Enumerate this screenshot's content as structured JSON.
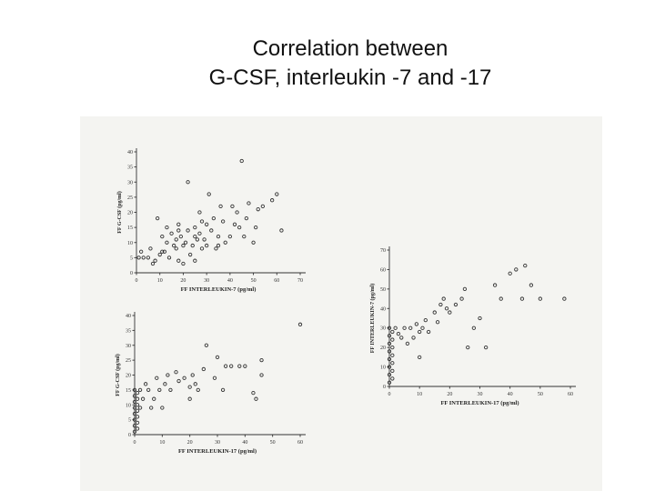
{
  "page": {
    "title_line1": "Correlation between",
    "title_line2": "G-CSF, interleukin -7 and -17"
  },
  "chart_data": [
    {
      "type": "scatter",
      "xlabel": "FF INTERLEUKIN-7 (pg/ml)",
      "ylabel": "FF G-CSF (pg/ml)",
      "xlim": [
        0,
        70
      ],
      "ylim": [
        0,
        40
      ],
      "xticks": [
        "0",
        "10",
        "20",
        "30",
        "40",
        "50",
        "60",
        "70"
      ],
      "yticks": [
        "0",
        "5",
        "10",
        "15",
        "20",
        "25",
        "30",
        "35",
        "40"
      ],
      "points": [
        [
          1,
          5
        ],
        [
          2,
          7
        ],
        [
          3,
          5
        ],
        [
          5,
          5
        ],
        [
          6,
          8
        ],
        [
          7,
          3
        ],
        [
          8,
          4
        ],
        [
          9,
          18
        ],
        [
          10,
          6
        ],
        [
          11,
          7
        ],
        [
          11,
          12
        ],
        [
          12,
          7
        ],
        [
          13,
          15
        ],
        [
          13,
          10
        ],
        [
          14,
          5
        ],
        [
          15,
          13
        ],
        [
          16,
          9
        ],
        [
          17,
          8
        ],
        [
          17,
          11
        ],
        [
          18,
          16
        ],
        [
          18,
          14
        ],
        [
          19,
          12
        ],
        [
          20,
          3
        ],
        [
          20,
          9
        ],
        [
          21,
          10
        ],
        [
          22,
          14
        ],
        [
          22,
          30
        ],
        [
          23,
          6
        ],
        [
          24,
          9
        ],
        [
          25,
          12
        ],
        [
          25,
          15
        ],
        [
          26,
          11
        ],
        [
          27,
          13
        ],
        [
          27,
          20
        ],
        [
          28,
          8
        ],
        [
          28,
          17
        ],
        [
          29,
          11
        ],
        [
          30,
          9
        ],
        [
          30,
          16
        ],
        [
          31,
          26
        ],
        [
          32,
          14
        ],
        [
          33,
          18
        ],
        [
          34,
          8
        ],
        [
          35,
          12
        ],
        [
          36,
          22
        ],
        [
          37,
          17
        ],
        [
          38,
          10
        ],
        [
          40,
          12
        ],
        [
          41,
          22
        ],
        [
          42,
          16
        ],
        [
          43,
          20
        ],
        [
          44,
          15
        ],
        [
          45,
          37
        ],
        [
          46,
          12
        ],
        [
          47,
          18
        ],
        [
          48,
          23
        ],
        [
          50,
          10
        ],
        [
          51,
          15
        ],
        [
          52,
          21
        ],
        [
          54,
          22
        ],
        [
          58,
          24
        ],
        [
          60,
          26
        ],
        [
          62,
          14
        ],
        [
          18,
          4
        ],
        [
          25,
          4
        ],
        [
          35,
          9
        ]
      ]
    },
    {
      "type": "scatter",
      "xlabel": "FF INTERLEUKIN-17 (pg/ml)",
      "ylabel": "FF G-CSF (pg/ml)",
      "xlim": [
        0,
        60
      ],
      "ylim": [
        0,
        40
      ],
      "xticks": [
        "0",
        "10",
        "20",
        "30",
        "40",
        "50",
        "60"
      ],
      "yticks": [
        "0",
        "5",
        "10",
        "15",
        "20",
        "25",
        "30",
        "35",
        "40"
      ],
      "points": [
        [
          0,
          1
        ],
        [
          0,
          3
        ],
        [
          0,
          5
        ],
        [
          0,
          7
        ],
        [
          0,
          9
        ],
        [
          0,
          11
        ],
        [
          0,
          13
        ],
        [
          0,
          15
        ],
        [
          1,
          2
        ],
        [
          1,
          4
        ],
        [
          1,
          6
        ],
        [
          1,
          8
        ],
        [
          1,
          10
        ],
        [
          1,
          12
        ],
        [
          1,
          14
        ],
        [
          2,
          9
        ],
        [
          2,
          15
        ],
        [
          3,
          12
        ],
        [
          4,
          17
        ],
        [
          5,
          15
        ],
        [
          6,
          9
        ],
        [
          7,
          12
        ],
        [
          8,
          19
        ],
        [
          9,
          15
        ],
        [
          10,
          9
        ],
        [
          11,
          17
        ],
        [
          12,
          20
        ],
        [
          13,
          15
        ],
        [
          15,
          21
        ],
        [
          16,
          18
        ],
        [
          18,
          19
        ],
        [
          20,
          16
        ],
        [
          20,
          12
        ],
        [
          21,
          20
        ],
        [
          22,
          17
        ],
        [
          23,
          15
        ],
        [
          25,
          22
        ],
        [
          26,
          30
        ],
        [
          29,
          19
        ],
        [
          30,
          26
        ],
        [
          32,
          15
        ],
        [
          33,
          23
        ],
        [
          35,
          23
        ],
        [
          38,
          23
        ],
        [
          40,
          23
        ],
        [
          43,
          14
        ],
        [
          44,
          12
        ],
        [
          46,
          25
        ],
        [
          46,
          20
        ],
        [
          60,
          37
        ]
      ]
    },
    {
      "type": "scatter",
      "xlabel": "FF INTERLEUKIN-17 (pg/ml)",
      "ylabel": "FF INTERLEUKIN-7 (pg/ml)",
      "xlim": [
        0,
        60
      ],
      "ylim": [
        0,
        70
      ],
      "xticks": [
        "0",
        "10",
        "20",
        "30",
        "40",
        "50",
        "60"
      ],
      "yticks": [
        "0",
        "10",
        "20",
        "30",
        "40",
        "50",
        "60",
        "70"
      ],
      "points": [
        [
          0,
          2
        ],
        [
          0,
          6
        ],
        [
          0,
          10
        ],
        [
          0,
          14
        ],
        [
          0,
          18
        ],
        [
          0,
          22
        ],
        [
          0,
          26
        ],
        [
          0,
          30
        ],
        [
          1,
          4
        ],
        [
          1,
          8
        ],
        [
          1,
          12
        ],
        [
          1,
          16
        ],
        [
          1,
          20
        ],
        [
          1,
          24
        ],
        [
          1,
          28
        ],
        [
          2,
          30
        ],
        [
          3,
          27
        ],
        [
          4,
          25
        ],
        [
          5,
          30
        ],
        [
          6,
          22
        ],
        [
          7,
          30
        ],
        [
          8,
          25
        ],
        [
          9,
          32
        ],
        [
          10,
          15
        ],
        [
          10,
          28
        ],
        [
          11,
          30
        ],
        [
          12,
          34
        ],
        [
          13,
          28
        ],
        [
          15,
          38
        ],
        [
          16,
          33
        ],
        [
          17,
          42
        ],
        [
          18,
          45
        ],
        [
          19,
          40
        ],
        [
          20,
          38
        ],
        [
          22,
          42
        ],
        [
          24,
          45
        ],
        [
          25,
          50
        ],
        [
          26,
          20
        ],
        [
          28,
          30
        ],
        [
          30,
          35
        ],
        [
          32,
          20
        ],
        [
          35,
          52
        ],
        [
          37,
          45
        ],
        [
          40,
          58
        ],
        [
          42,
          60
        ],
        [
          44,
          45
        ],
        [
          45,
          62
        ],
        [
          47,
          52
        ],
        [
          50,
          45
        ],
        [
          58,
          45
        ]
      ]
    }
  ]
}
